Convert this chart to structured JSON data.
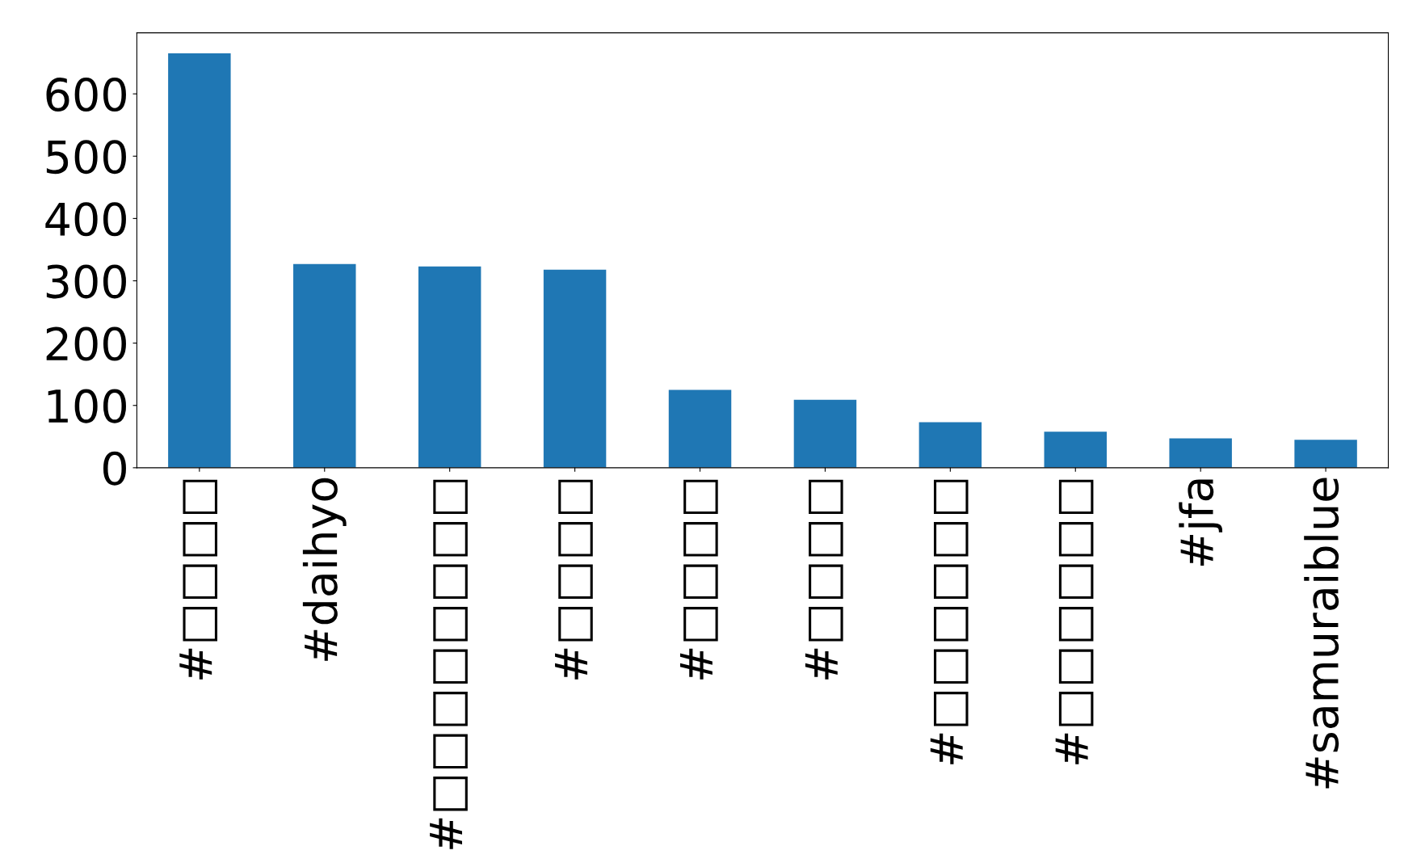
{
  "chart_data": {
    "type": "bar",
    "categories": [
      "#□□□□",
      "#daihyo",
      "#□□□□□□□□",
      "#□□□□",
      "#□□□□",
      "#□□□□",
      "#□□□□□□",
      "#□□□□□□",
      "#jfa",
      "#samuraiblue"
    ],
    "values": [
      665,
      327,
      323,
      318,
      125,
      109,
      73,
      58,
      47,
      45
    ],
    "color": "#1f77b4",
    "ylim": [
      0,
      698
    ],
    "yticks": [
      0,
      100,
      200,
      300,
      400,
      500,
      600
    ],
    "grid": false,
    "legend": false
  }
}
